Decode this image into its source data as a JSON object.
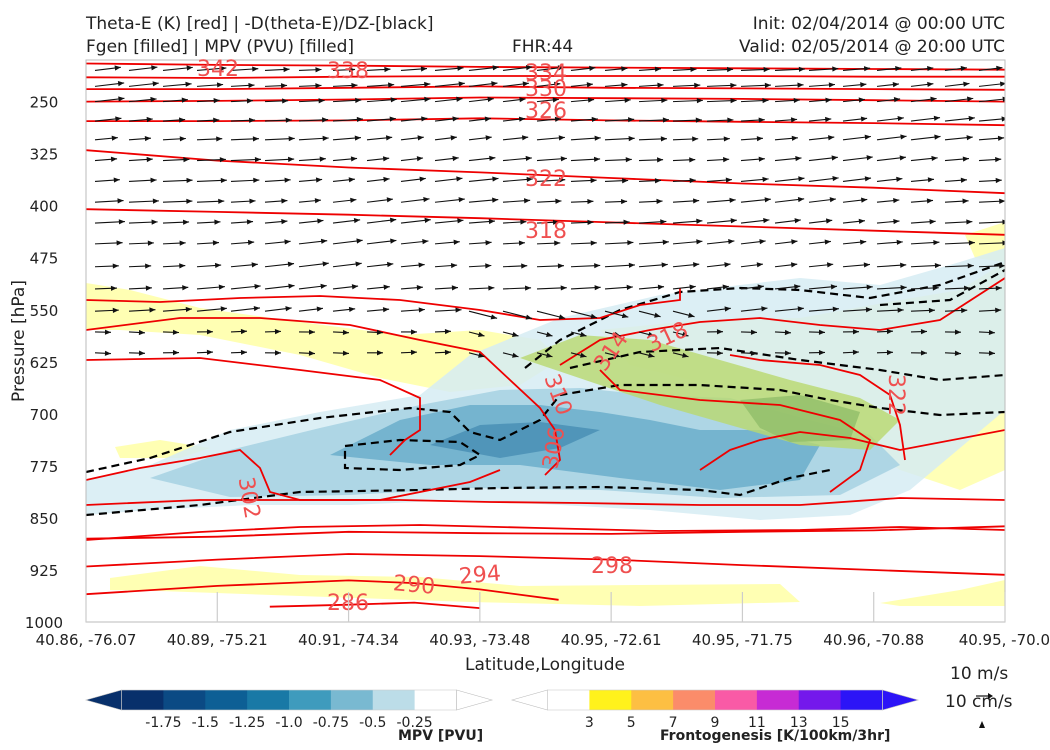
{
  "header": {
    "line1_left": "Theta-E (K) [red] | -D(theta-E)/DZ-[black]",
    "line2_left": "Fgen [filled] | MPV (PVU) [filled]",
    "fhr": "FHR:44",
    "init": "Init: 02/04/2014 @ 00:00 UTC",
    "valid": "Valid: 02/05/2014 @ 20:00 UTC"
  },
  "chart_data": {
    "type": "cross-section",
    "xlabel": "Latitude,Longitude",
    "ylabel": "Pressure [hPa]",
    "x_ticks": [
      "40.86, -76.07",
      "40.89, -75.21",
      "40.91, -74.34",
      "40.93, -73.48",
      "40.95, -72.61",
      "40.95, -71.75",
      "40.96, -70.88",
      "40.95, -70.0"
    ],
    "y_ticks": [
      250,
      325,
      400,
      475,
      550,
      625,
      700,
      775,
      850,
      925,
      1000
    ],
    "ylim": [
      1000,
      190
    ],
    "theta_e_contours": [
      {
        "label": "342",
        "points": [
          [
            0.0,
            195
          ],
          [
            1.0,
            197
          ],
          [
            2.0,
            198
          ],
          [
            3.0,
            200
          ],
          [
            4.0,
            201
          ],
          [
            5.0,
            202
          ],
          [
            6.0,
            203
          ],
          [
            7.0,
            204
          ]
        ]
      },
      {
        "label": "338",
        "points": [
          [
            0.0,
            215
          ],
          [
            1.0,
            216
          ],
          [
            2.0,
            214
          ],
          [
            3.0,
            213
          ],
          [
            4.0,
            213
          ],
          [
            5.0,
            213
          ],
          [
            6.0,
            214
          ],
          [
            7.0,
            214
          ]
        ]
      },
      {
        "label": "334",
        "points": [
          [
            0.0,
            232
          ],
          [
            1.0,
            232
          ],
          [
            2.0,
            230
          ],
          [
            3.0,
            228
          ],
          [
            4.0,
            230
          ],
          [
            5.0,
            231
          ],
          [
            6.0,
            232
          ],
          [
            7.0,
            233
          ]
        ]
      },
      {
        "label": "330",
        "points": [
          [
            0.0,
            250
          ],
          [
            1.0,
            249
          ],
          [
            2.0,
            247
          ],
          [
            3.0,
            244
          ],
          [
            4.0,
            245
          ],
          [
            5.0,
            246
          ],
          [
            6.0,
            248
          ],
          [
            7.0,
            250
          ]
        ]
      },
      {
        "label": "326",
        "points": [
          [
            0.0,
            278
          ],
          [
            1.0,
            278
          ],
          [
            2.0,
            277
          ],
          [
            3.0,
            274
          ],
          [
            4.0,
            277
          ],
          [
            5.0,
            279
          ],
          [
            6.0,
            281
          ],
          [
            7.0,
            284
          ]
        ]
      },
      {
        "label": "322",
        "points": [
          [
            0.0,
            320
          ],
          [
            1.0,
            335
          ],
          [
            2.0,
            345
          ],
          [
            3.0,
            352
          ],
          [
            4.0,
            360
          ],
          [
            5.0,
            368
          ],
          [
            6.0,
            374
          ],
          [
            7.0,
            382
          ]
        ]
      },
      {
        "label": "318",
        "points": [
          [
            0.0,
            405
          ],
          [
            1.0,
            409
          ],
          [
            2.0,
            413
          ],
          [
            3.0,
            418
          ],
          [
            4.0,
            424
          ],
          [
            5.0,
            430
          ],
          [
            6.0,
            436
          ],
          [
            7.0,
            442
          ]
        ]
      },
      {
        "label": "298",
        "points": [
          [
            0.0,
            880
          ],
          [
            1.0,
            877
          ],
          [
            2.0,
            870
          ],
          [
            3.0,
            872
          ],
          [
            4.0,
            873
          ],
          [
            5.0,
            870
          ],
          [
            6.0,
            868
          ],
          [
            7.0,
            862
          ]
        ]
      },
      {
        "label": "294",
        "points": [
          [
            0.0,
            920
          ],
          [
            1.0,
            910
          ],
          [
            2.0,
            902
          ],
          [
            3.0,
            905
          ],
          [
            4.0,
            910
          ],
          [
            5.0,
            918
          ],
          [
            6.0,
            925
          ],
          [
            7.0,
            932
          ]
        ]
      },
      {
        "label": "290",
        "points": [
          [
            0.0,
            960
          ],
          [
            1.0,
            948
          ],
          [
            2.0,
            940
          ],
          [
            2.5,
            944
          ],
          [
            3.0,
            953
          ],
          [
            3.6,
            968
          ]
        ]
      },
      {
        "label": "286",
        "points": [
          [
            1.4,
            978
          ],
          [
            2.0,
            975
          ],
          [
            2.5,
            972
          ],
          [
            3.0,
            980
          ]
        ]
      }
    ],
    "contour_labels": [
      "342",
      "338",
      "334",
      "330",
      "326",
      "322",
      "318",
      "314",
      "318",
      "310",
      "306",
      "302",
      "322",
      "298",
      "294",
      "290",
      "286"
    ],
    "mpv_colorbar": {
      "title": "MPV [PVU]",
      "ticks": [
        "-1.75",
        "-1.5",
        "-1.25",
        "-1.0",
        "-0.75",
        "-0.5",
        "-0.25"
      ],
      "colors": [
        "#08306b",
        "#0b4a84",
        "#0d5f95",
        "#1979a6",
        "#3f9bbd",
        "#79b9d1",
        "#bcdde8",
        "#ffffff"
      ]
    },
    "fgen_colorbar": {
      "title": "Frontogenesis [K/100km/3hr]",
      "ticks": [
        "3",
        "5",
        "7",
        "9",
        "11",
        "13",
        "15"
      ],
      "colors": [
        "#ffffff",
        "#fff21c",
        "#fdbf43",
        "#fb8c6a",
        "#f95aa6",
        "#c72bd4",
        "#7418ec",
        "#2c14f7"
      ]
    },
    "wind_key": {
      "label1": "10 m/s",
      "label2": "10 cm/s"
    },
    "colors": {
      "theta_e": "#ee0000",
      "dthetae": "#000000",
      "arrow": "#111111"
    }
  }
}
